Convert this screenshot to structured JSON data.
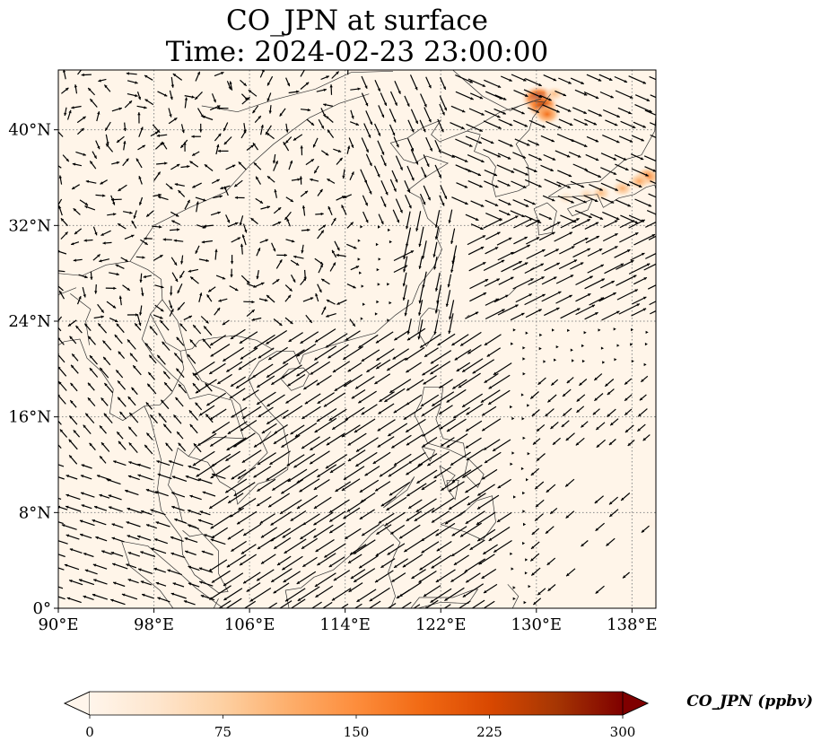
{
  "title": {
    "line1": "CO_JPN at surface",
    "line2": "Time: 2024-02-23 23:00:00"
  },
  "map": {
    "background_color": "#fff5e9",
    "coastline_color": "#333333",
    "grid_color": "#888888",
    "lon_range": [
      90,
      140
    ],
    "lat_range": [
      0,
      45
    ],
    "lon_ticks": [
      {
        "value": 90,
        "label": "90°E"
      },
      {
        "value": 98,
        "label": "98°E"
      },
      {
        "value": 106,
        "label": "106°E"
      },
      {
        "value": 114,
        "label": "114°E"
      },
      {
        "value": 122,
        "label": "122°E"
      },
      {
        "value": 130,
        "label": "130°E"
      },
      {
        "value": 138,
        "label": "138°E"
      }
    ],
    "lat_ticks": [
      {
        "value": 0,
        "label": "0°"
      },
      {
        "value": 8,
        "label": "8°N"
      },
      {
        "value": 16,
        "label": "16°N"
      },
      {
        "value": 24,
        "label": "24°N"
      },
      {
        "value": 32,
        "label": "32°N"
      },
      {
        "value": 40,
        "label": "40°N"
      }
    ],
    "hotspots": [
      {
        "lon": 130.2,
        "lat": 42.6,
        "value": 290
      },
      {
        "lon": 130.5,
        "lat": 42.0,
        "value": 250
      },
      {
        "lon": 130.9,
        "lat": 41.3,
        "value": 180
      },
      {
        "lon": 131.5,
        "lat": 43.0,
        "value": 90
      },
      {
        "lon": 139.3,
        "lat": 36.1,
        "value": 160
      },
      {
        "lon": 138.6,
        "lat": 35.7,
        "value": 120
      },
      {
        "lon": 137.2,
        "lat": 35.1,
        "value": 110
      },
      {
        "lon": 135.4,
        "lat": 34.7,
        "value": 95
      },
      {
        "lon": 134.2,
        "lat": 34.6,
        "value": 60
      },
      {
        "lon": 132.5,
        "lat": 34.3,
        "value": 45
      },
      {
        "lon": 139.6,
        "lat": 7.0,
        "value": 10
      }
    ]
  },
  "colorbar": {
    "min": 0,
    "max": 300,
    "label": "CO_JPN (ppbv)",
    "ticks": [
      "0",
      "75",
      "150",
      "225",
      "300"
    ],
    "colors": [
      "#fff5eb",
      "#fee6ce",
      "#fdd0a2",
      "#fdae6b",
      "#fd8d3c",
      "#f16913",
      "#d94801",
      "#a63603",
      "#7f0000"
    ]
  }
}
